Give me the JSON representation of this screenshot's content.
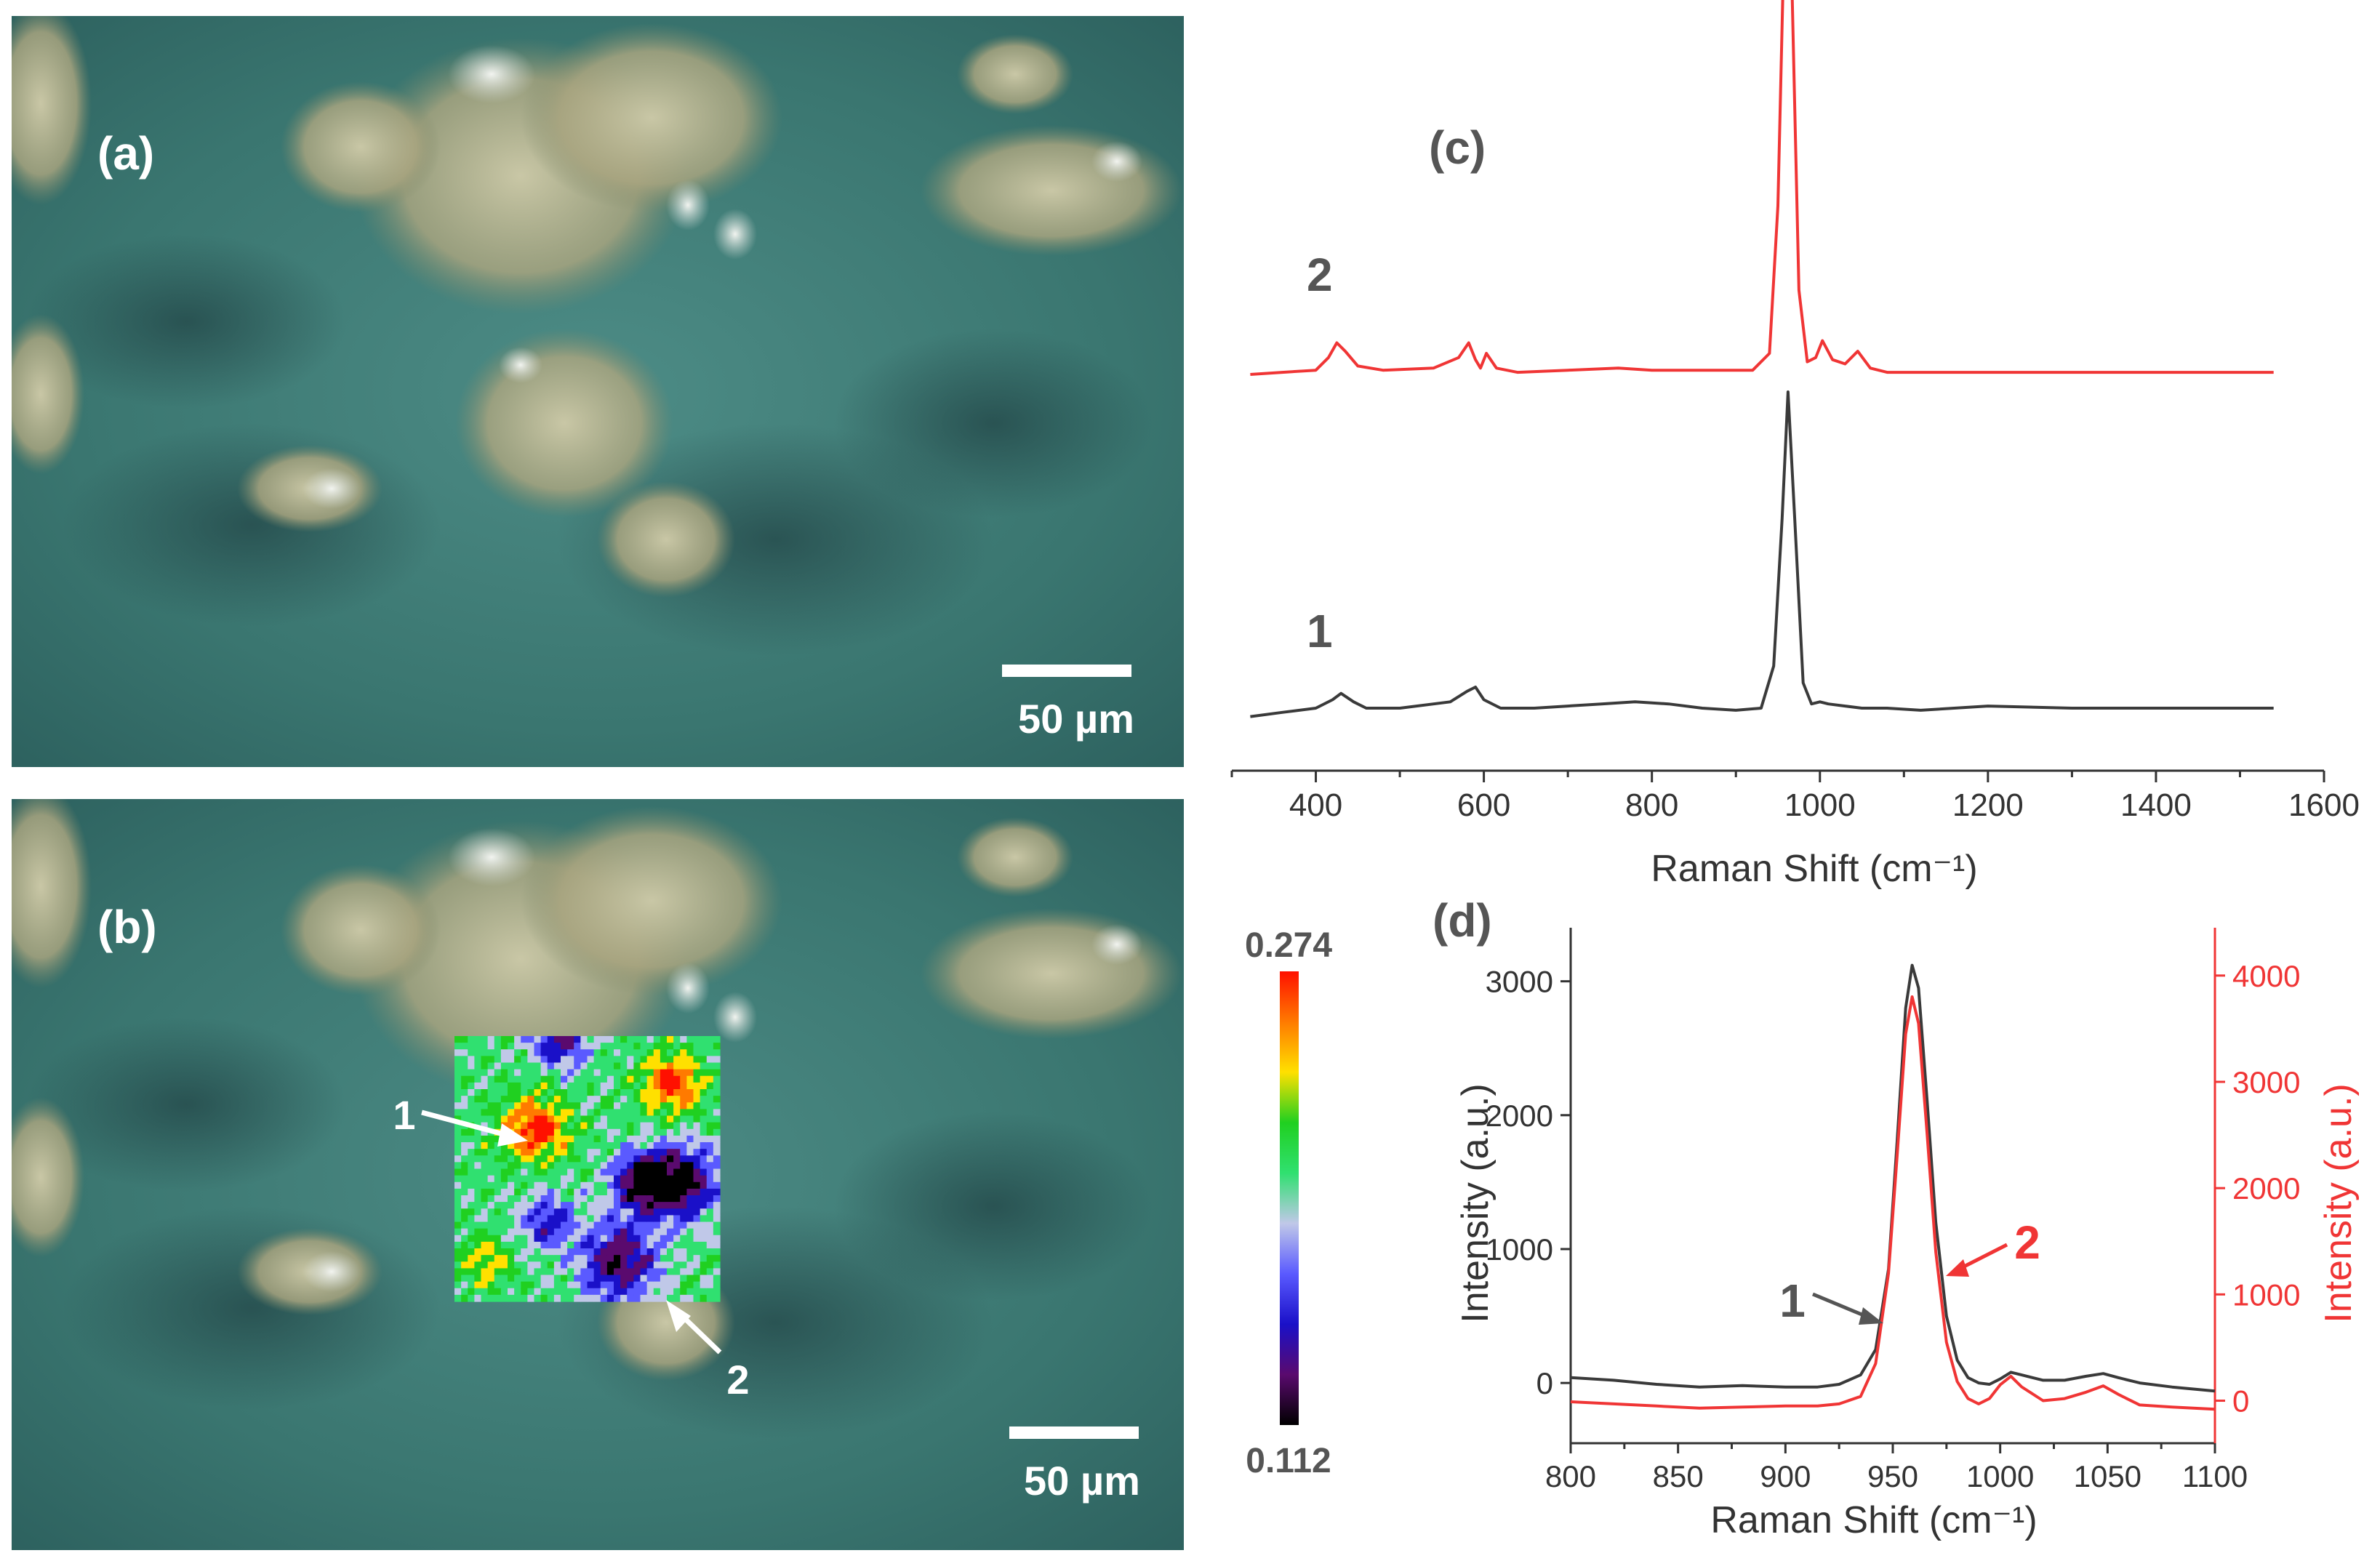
{
  "panels": {
    "a": {
      "label": "(a)",
      "scalebar": "50 µm"
    },
    "b": {
      "label": "(b)",
      "scalebar": "50 µm",
      "point1": "1",
      "point2": "2",
      "colorbar": {
        "max": "0.274",
        "min": "0.112",
        "colors": [
          "#000000",
          "#5a0a6e",
          "#1a10c8",
          "#5a5aff",
          "#c0c8e8",
          "#30e070",
          "#20d020",
          "#ffe000",
          "#ff7a00",
          "#ff1000"
        ]
      }
    },
    "c": {
      "label": "(c)",
      "spectrum2_label": "2",
      "spectrum1_label": "1"
    },
    "d": {
      "label": "(d)",
      "curve1_label": "1",
      "curve2_label": "2"
    }
  },
  "colors": {
    "spectrum1": "#3a3a3a",
    "spectrum2": "#f03535",
    "axis_right": "#f03535",
    "panel_label": "#555555"
  },
  "chart_data": [
    {
      "type": "line",
      "panel": "c",
      "xlabel": "Raman Shift (cm⁻¹)",
      "ylabel": "",
      "xlim": [
        300,
        1600
      ],
      "xticks": [
        400,
        600,
        800,
        1000,
        1200,
        1400,
        1600
      ],
      "y_axis_shown": false,
      "stacked_offset": true,
      "series": [
        {
          "name": "1",
          "color": "#3a3a3a",
          "x": [
            322,
            360,
            400,
            420,
            430,
            445,
            460,
            500,
            560,
            580,
            590,
            600,
            620,
            660,
            700,
            740,
            780,
            820,
            860,
            900,
            930,
            945,
            955,
            962,
            970,
            980,
            990,
            1000,
            1010,
            1030,
            1050,
            1080,
            1120,
            1200,
            1300,
            1400,
            1500,
            1540
          ],
          "y": [
            0.06,
            0.08,
            0.1,
            0.14,
            0.17,
            0.13,
            0.1,
            0.1,
            0.13,
            0.18,
            0.2,
            0.14,
            0.1,
            0.1,
            0.11,
            0.12,
            0.13,
            0.12,
            0.1,
            0.09,
            0.1,
            0.3,
            1.0,
            1.6,
            1.0,
            0.22,
            0.12,
            0.13,
            0.12,
            0.11,
            0.1,
            0.1,
            0.09,
            0.11,
            0.1,
            0.1,
            0.1,
            0.1
          ]
        },
        {
          "name": "2",
          "color": "#f03535",
          "x": [
            322,
            360,
            400,
            415,
            425,
            435,
            450,
            480,
            540,
            570,
            582,
            590,
            596,
            603,
            615,
            640,
            700,
            760,
            800,
            860,
            920,
            940,
            950,
            957,
            962,
            967,
            975,
            985,
            995,
            1003,
            1015,
            1030,
            1045,
            1060,
            1080,
            1150,
            1250,
            1350,
            1450,
            1540
          ],
          "y": [
            0.0,
            0.01,
            0.02,
            0.08,
            0.15,
            0.11,
            0.04,
            0.02,
            0.03,
            0.08,
            0.15,
            0.07,
            0.03,
            0.1,
            0.03,
            0.01,
            0.02,
            0.03,
            0.02,
            0.02,
            0.02,
            0.1,
            0.8,
            2.0,
            2.45,
            1.8,
            0.4,
            0.06,
            0.08,
            0.16,
            0.07,
            0.05,
            0.11,
            0.03,
            0.01,
            0.01,
            0.01,
            0.01,
            0.01,
            0.01
          ]
        }
      ]
    },
    {
      "type": "line",
      "panel": "d",
      "xlabel": "Raman Shift (cm⁻¹)",
      "ylabel": "Intensity (a.u.)",
      "y2label": "Intensity (a.u.)",
      "xlim": [
        800,
        1100
      ],
      "ylim": [
        -450,
        3400
      ],
      "y2lim": [
        -400,
        4450
      ],
      "xticks": [
        800,
        850,
        900,
        950,
        1000,
        1050,
        1100
      ],
      "yticks": [
        0,
        1000,
        2000,
        3000
      ],
      "y2ticks": [
        0,
        1000,
        2000,
        3000,
        4000
      ],
      "series": [
        {
          "name": "1",
          "axis": "left",
          "color": "#3a3a3a",
          "x": [
            800,
            820,
            840,
            860,
            880,
            900,
            915,
            925,
            935,
            942,
            948,
            952,
            956,
            959,
            962,
            966,
            970,
            975,
            980,
            985,
            990,
            995,
            1000,
            1005,
            1010,
            1020,
            1030,
            1040,
            1048,
            1055,
            1065,
            1080,
            1100
          ],
          "y": [
            40,
            20,
            -10,
            -30,
            -20,
            -30,
            -30,
            -10,
            60,
            250,
            850,
            1800,
            2800,
            3120,
            2950,
            2100,
            1200,
            500,
            170,
            40,
            0,
            -10,
            30,
            80,
            60,
            20,
            20,
            50,
            70,
            40,
            0,
            -30,
            -60
          ]
        },
        {
          "name": "2",
          "axis": "right",
          "color": "#f03535",
          "x": [
            800,
            820,
            840,
            860,
            880,
            900,
            915,
            925,
            935,
            942,
            948,
            952,
            956,
            959,
            962,
            966,
            970,
            975,
            980,
            985,
            990,
            995,
            1000,
            1005,
            1010,
            1020,
            1030,
            1040,
            1048,
            1055,
            1065,
            1080,
            1100
          ],
          "y": [
            -10,
            -30,
            -50,
            -70,
            -60,
            -50,
            -50,
            -30,
            40,
            350,
            1200,
            2300,
            3450,
            3800,
            3550,
            2500,
            1400,
            550,
            180,
            20,
            -30,
            20,
            150,
            230,
            130,
            0,
            20,
            80,
            140,
            60,
            -40,
            -60,
            -80
          ]
        }
      ]
    }
  ]
}
